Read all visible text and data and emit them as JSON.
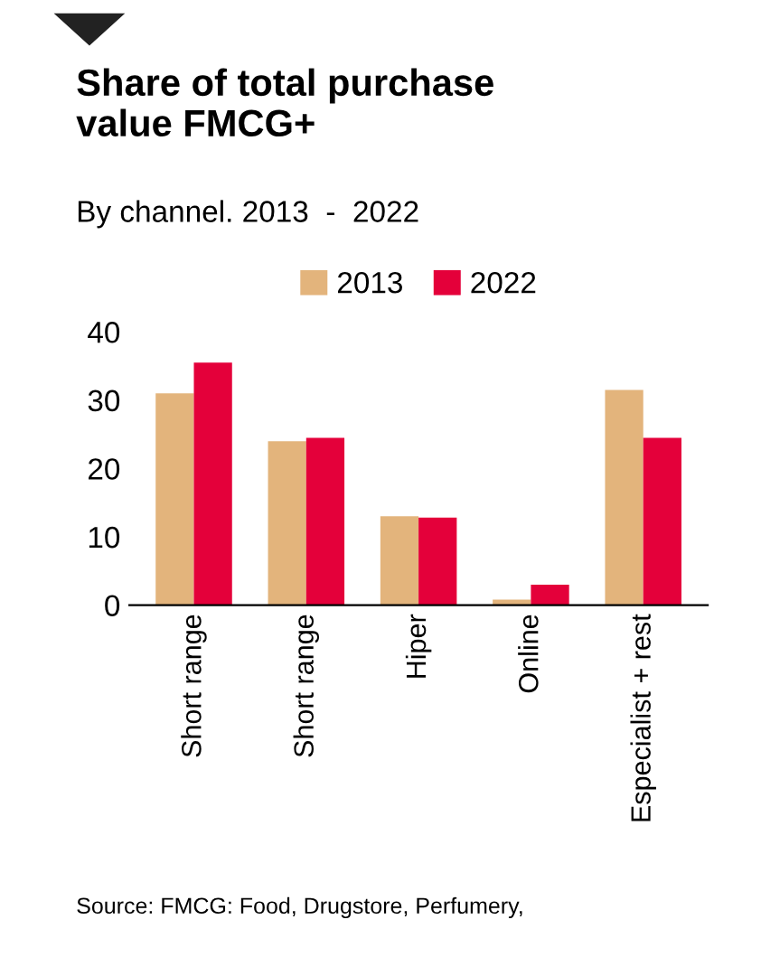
{
  "chart_data": {
    "type": "bar",
    "title": "Share of total purchase\nvalue FMCG+",
    "subtitle": "By channel. 2013  -  2022",
    "categories": [
      "Short range",
      "Short range",
      "Hiper",
      "Online",
      "Especialist + rest"
    ],
    "series": [
      {
        "name": "2013",
        "color": "#e3b47c",
        "values": [
          31,
          24,
          13,
          0.8,
          31.5
        ]
      },
      {
        "name": "2022",
        "color": "#e4003a",
        "values": [
          35.5,
          24.5,
          12.8,
          3,
          24.5
        ]
      }
    ],
    "ylim": [
      0,
      40
    ],
    "yticks": [
      0,
      10,
      20,
      30,
      40
    ],
    "grid": false,
    "legend": "top",
    "annotations": [
      "Source: FMCG: Food, Drugstore, Perfumery,"
    ]
  }
}
